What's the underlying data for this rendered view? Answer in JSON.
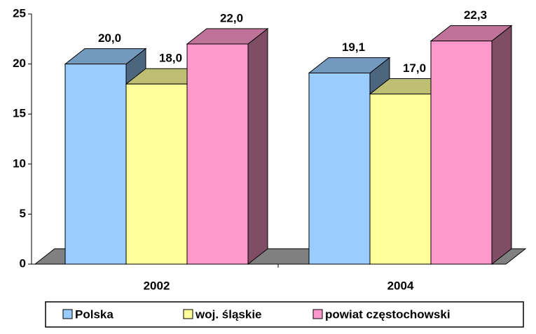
{
  "chart_data": {
    "type": "bar3d",
    "categories": [
      "2002",
      "2004"
    ],
    "series": [
      {
        "name": "Polska",
        "color": "#99ccff",
        "values": [
          20.0,
          19.1
        ],
        "value_labels": [
          "20,0",
          "19,1"
        ]
      },
      {
        "name": "woj. śląskie",
        "color": "#ffff99",
        "values": [
          18.0,
          17.0
        ],
        "value_labels": [
          "18,0",
          "17,0"
        ]
      },
      {
        "name": "powiat częstochowski",
        "color": "#ff99cc",
        "values": [
          22.0,
          22.3
        ],
        "value_labels": [
          "22,0",
          "22,3"
        ]
      }
    ],
    "ylim": [
      0,
      25
    ],
    "yticks": [
      0,
      5,
      10,
      15,
      20,
      25
    ],
    "legend": "bottom"
  }
}
